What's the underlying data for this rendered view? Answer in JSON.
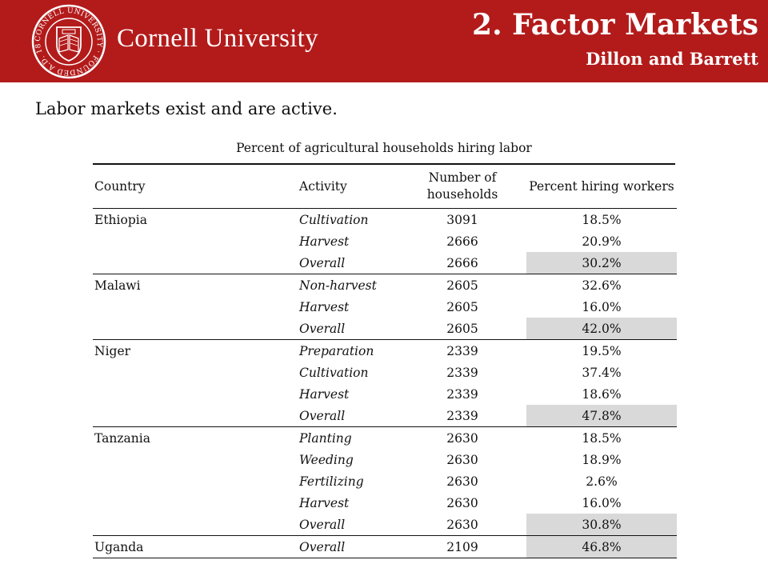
{
  "header": {
    "seal_text": "CORNELL UNIVERSITY · FOUNDED A.D. 1865",
    "university_name": "Cornell University",
    "slide_title": "2. Factor Markets",
    "slide_subtitle": "Dillon and Barrett",
    "colors": {
      "brand_red": "#b31b1b",
      "shade_gray": "#d9d9d9"
    }
  },
  "intro": "Labor markets exist and are active.",
  "table": {
    "caption": "Percent of agricultural households  hiring labor",
    "columns": [
      "Country",
      "Activity",
      "Number of households",
      "Percent hiring workers"
    ],
    "groups": [
      {
        "country": "Ethiopia",
        "rows": [
          {
            "activity": "Cultivation",
            "households": "3091",
            "percent": "18.5%",
            "shaded": false
          },
          {
            "activity": "Harvest",
            "households": "2666",
            "percent": "20.9%",
            "shaded": false
          },
          {
            "activity": "Overall",
            "households": "2666",
            "percent": "30.2%",
            "shaded": true
          }
        ]
      },
      {
        "country": "Malawi",
        "rows": [
          {
            "activity": "Non-harvest",
            "households": "2605",
            "percent": "32.6%",
            "shaded": false
          },
          {
            "activity": "Harvest",
            "households": "2605",
            "percent": "16.0%",
            "shaded": false
          },
          {
            "activity": "Overall",
            "households": "2605",
            "percent": "42.0%",
            "shaded": true
          }
        ]
      },
      {
        "country": "Niger",
        "rows": [
          {
            "activity": " Preparation",
            "households": "2339",
            "percent": "19.5%",
            "shaded": false
          },
          {
            "activity": "Cultivation",
            "households": "2339",
            "percent": "37.4%",
            "shaded": false
          },
          {
            "activity": "Harvest",
            "households": "2339",
            "percent": "18.6%",
            "shaded": false
          },
          {
            "activity": "Overall",
            "households": "2339",
            "percent": "47.8%",
            "shaded": true
          }
        ]
      },
      {
        "country": "Tanzania",
        "rows": [
          {
            "activity": "Planting",
            "households": "2630",
            "percent": "18.5%",
            "shaded": false
          },
          {
            "activity": "Weeding",
            "households": "2630",
            "percent": "18.9%",
            "shaded": false
          },
          {
            "activity": "Fertilizing",
            "households": "2630",
            "percent": "2.6%",
            "shaded": false
          },
          {
            "activity": "Harvest",
            "households": "2630",
            "percent": "16.0%",
            "shaded": false
          },
          {
            "activity": "Overall",
            "households": "2630",
            "percent": "30.8%",
            "shaded": true
          }
        ]
      },
      {
        "country": "Uganda",
        "rows": [
          {
            "activity": "Overall",
            "households": "2109",
            "percent": "46.8%",
            "shaded": true
          }
        ]
      }
    ]
  }
}
